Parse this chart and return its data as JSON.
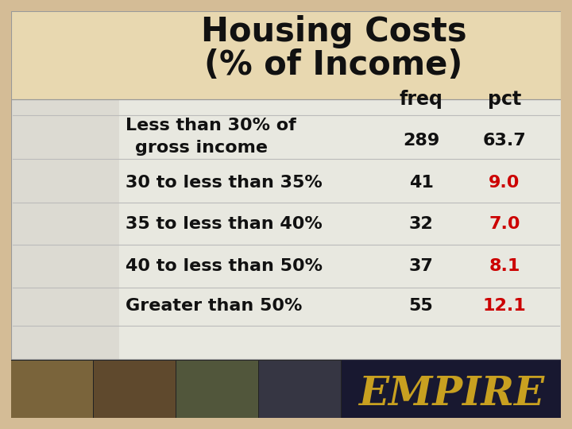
{
  "title_line1": "Housing Costs",
  "title_line2": "(% of Income)",
  "col_headers": [
    "freq",
    "pct"
  ],
  "rows": [
    {
      "label_line1": "Less than 30% of",
      "label_line2": "  gross income",
      "freq": "289",
      "pct": "63.7",
      "pct_color": "#111111"
    },
    {
      "label_line1": "30 to less than 35%",
      "label_line2": "",
      "freq": "41",
      "pct": "9.0",
      "pct_color": "#cc0000"
    },
    {
      "label_line1": "35 to less than 40%",
      "label_line2": "",
      "freq": "32",
      "pct": "7.0",
      "pct_color": "#cc0000"
    },
    {
      "label_line1": "40 to less than 50%",
      "label_line2": "",
      "freq": "37",
      "pct": "8.1",
      "pct_color": "#cc0000"
    },
    {
      "label_line1": "Greater than 50%",
      "label_line2": "",
      "freq": "55",
      "pct": "12.1",
      "pct_color": "#cc0000"
    }
  ],
  "bg_outer": "#d4bc96",
  "bg_title": "#e8d8b0",
  "bg_content": "#e8e8e0",
  "bg_left_stripe": "#c8c0b8",
  "title_color": "#111111",
  "label_color": "#111111",
  "freq_color": "#111111",
  "header_color": "#111111",
  "sep_color": "#bbbbbb",
  "empire_color": "#c8a020",
  "photo_bg": "#222222",
  "empire_bg": "#1a1a3a",
  "fig_width": 7.2,
  "fig_height": 5.4,
  "dpi": 100
}
